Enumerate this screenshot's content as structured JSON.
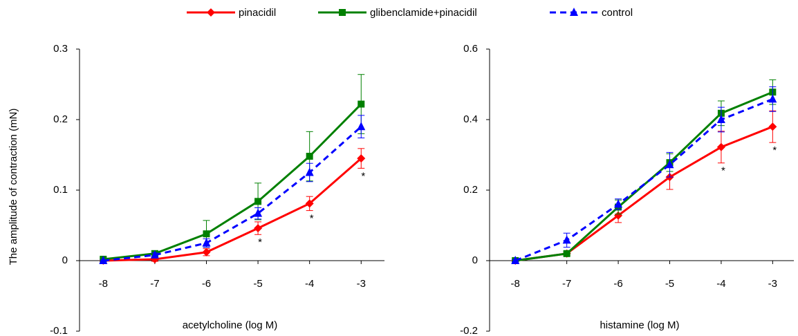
{
  "chart_data": [
    {
      "type": "line",
      "xlabel": "acetylcholine (log M)",
      "ylabel": "The amplitude of contraction (mN)",
      "x": [
        -8,
        -7,
        -6,
        -5,
        -4,
        -3
      ],
      "xlim": [
        -8.46,
        -2.36
      ],
      "xticks": [
        -8,
        -7,
        -6,
        -5,
        -4,
        -3
      ],
      "ylim": [
        -0.1,
        0.3
      ],
      "yticks": [
        -0.1,
        0,
        0.1,
        0.2,
        0.3
      ],
      "series": [
        {
          "name": "pinacidil",
          "color": "#ff0000",
          "marker": "diamond",
          "dashed": false,
          "values": [
            0,
            0.002,
            0.012,
            0.046,
            0.081,
            0.145
          ],
          "errors": [
            0.002,
            0.003,
            0.005,
            0.009,
            0.01,
            0.014
          ]
        },
        {
          "name": "glibenclamide+pinacidil",
          "color": "#008000",
          "marker": "square",
          "dashed": false,
          "values": [
            0.002,
            0.01,
            0.038,
            0.084,
            0.148,
            0.222
          ],
          "errors": [
            0.002,
            0.004,
            0.019,
            0.026,
            0.035,
            0.042
          ]
        },
        {
          "name": "control",
          "color": "#0000ff",
          "marker": "triangle",
          "dashed": true,
          "values": [
            0,
            0.008,
            0.025,
            0.067,
            0.125,
            0.19
          ],
          "errors": [
            0.001,
            0.003,
            0.006,
            0.008,
            0.013,
            0.016
          ]
        }
      ],
      "annotations": [
        {
          "x": -5,
          "text": "*"
        },
        {
          "x": -4,
          "text": "*"
        },
        {
          "x": -3,
          "text": "*"
        }
      ]
    },
    {
      "type": "line",
      "xlabel": "histamine (log M)",
      "x": [
        -8,
        -7,
        -6,
        -5,
        -4,
        -3
      ],
      "xlim": [
        -8.5,
        -2.4
      ],
      "xticks": [
        -8,
        -7,
        -6,
        -5,
        -4,
        -3
      ],
      "ylim": [
        -0.2,
        0.6
      ],
      "yticks": [
        -0.2,
        0,
        0.2,
        0.4,
        0.6
      ],
      "series": [
        {
          "color": "#ff0000",
          "marker": "diamond",
          "dashed": false,
          "values": [
            0,
            0.02,
            0.128,
            0.237,
            0.322,
            0.38
          ],
          "errors": [
            0.003,
            0.005,
            0.02,
            0.035,
            0.045,
            0.045
          ]
        },
        {
          "color": "#008000",
          "marker": "square",
          "dashed": false,
          "values": [
            0,
            0.02,
            0.152,
            0.278,
            0.418,
            0.478
          ],
          "errors": [
            0.003,
            0.005,
            0.02,
            0.025,
            0.035,
            0.035
          ]
        },
        {
          "color": "#0000ff",
          "marker": "triangle",
          "dashed": true,
          "values": [
            0,
            0.058,
            0.16,
            0.272,
            0.4,
            0.458
          ],
          "errors": [
            0.003,
            0.02,
            0.015,
            0.035,
            0.035,
            0.035
          ]
        }
      ],
      "annotations": [
        {
          "x": -4,
          "text": "*"
        },
        {
          "x": -3,
          "text": "*"
        }
      ]
    }
  ]
}
